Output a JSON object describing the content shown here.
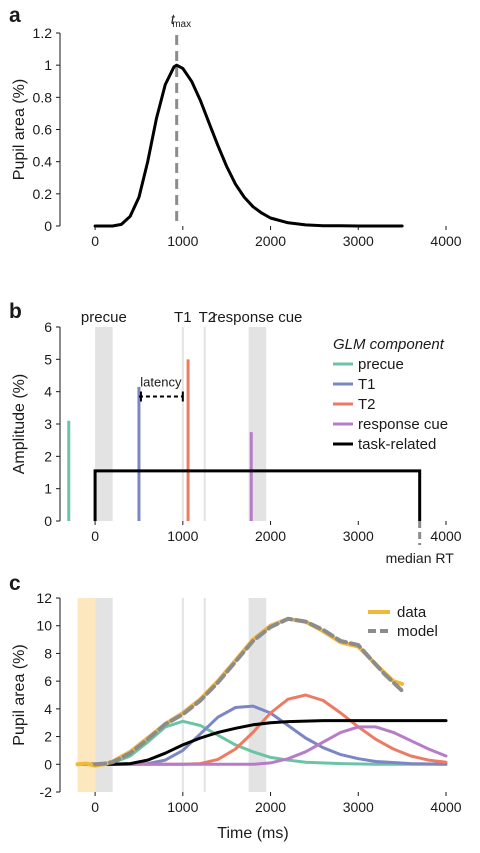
{
  "chart_data": [
    {
      "panel_label": "a",
      "type": "line",
      "xlabel": "",
      "ylabel": "Pupil area (%)",
      "xlim": [
        -400,
        4000
      ],
      "ylim": [
        0,
        1.2
      ],
      "xticks": [
        0,
        1000,
        2000,
        3000,
        4000
      ],
      "yticks": [
        0,
        0.2,
        0.4,
        0.6,
        0.8,
        1,
        1.2
      ],
      "ytick_labels": [
        "0",
        "0.2",
        "0.4",
        "0.6",
        "0.8",
        "1",
        "1.2"
      ],
      "series": [
        {
          "color": "#000000",
          "x": [
            0,
            200,
            300,
            400,
            500,
            600,
            700,
            800,
            900,
            930,
            1000,
            1100,
            1200,
            1300,
            1400,
            1500,
            1600,
            1700,
            1800,
            1900,
            2000,
            2200,
            2400,
            2600,
            2800,
            3000,
            3200,
            3500
          ],
          "y": [
            0,
            0,
            0.01,
            0.06,
            0.18,
            0.4,
            0.67,
            0.88,
            0.99,
            1.0,
            0.98,
            0.9,
            0.78,
            0.64,
            0.5,
            0.37,
            0.26,
            0.18,
            0.12,
            0.08,
            0.05,
            0.02,
            0.007,
            0.002,
            0.001,
            0,
            0,
            0
          ]
        }
      ],
      "annotations": [
        {
          "text_main": "t",
          "text_sub": "max",
          "x": 930,
          "style": "dashed-vertical",
          "color": "#8c8c8c"
        }
      ]
    },
    {
      "panel_label": "b",
      "type": "stem",
      "xlabel": "",
      "ylabel": "Amplitude (%)",
      "xlim": [
        -400,
        4000
      ],
      "ylim": [
        0,
        6
      ],
      "xticks": [
        0,
        1000,
        2000,
        3000,
        4000
      ],
      "yticks": [
        0,
        1,
        2,
        3,
        4,
        5,
        6
      ],
      "shaded_regions": [
        {
          "x": [
            0,
            200
          ],
          "color": "#e3e3e3"
        },
        {
          "x": [
            1750,
            1950
          ],
          "color": "#e3e3e3"
        }
      ],
      "event_lines": [
        {
          "x": 1000,
          "color": "#e3e3e3"
        },
        {
          "x": 1250,
          "color": "#e3e3e3"
        }
      ],
      "event_labels": [
        {
          "text": "precue",
          "x": 100
        },
        {
          "text": "T1",
          "x": 1000
        },
        {
          "text": "T2",
          "x": 1280
        },
        {
          "text": "response cue",
          "x": 1850
        }
      ],
      "legend_title": "GLM component",
      "legend_position": "right",
      "series": [
        {
          "name": "precue",
          "color": "#6cc4a4",
          "stem": {
            "x": -300,
            "y": 3.1
          }
        },
        {
          "name": "T1",
          "color": "#7b86c4",
          "stem": {
            "x": 500,
            "y": 4.15
          }
        },
        {
          "name": "T2",
          "color": "#ee7a62",
          "stem": {
            "x": 1060,
            "y": 5.0
          }
        },
        {
          "name": "response cue",
          "color": "#b77cc8",
          "stem": {
            "x": 1780,
            "y": 2.75
          }
        },
        {
          "name": "task-related",
          "color": "#000000",
          "box": {
            "x": [
              0,
              3700
            ],
            "y": 1.55
          }
        }
      ],
      "latency": {
        "text": "latency",
        "x": [
          500,
          1000
        ],
        "y": 3.85
      },
      "median_rt": {
        "text": "median RT",
        "x": 3700
      }
    },
    {
      "panel_label": "c",
      "type": "line",
      "xlabel": "Time (ms)",
      "ylabel": "Pupil area (%)",
      "xlim": [
        -400,
        4000
      ],
      "ylim": [
        -2,
        12
      ],
      "xticks": [
        0,
        1000,
        2000,
        3000,
        4000
      ],
      "yticks": [
        -2,
        0,
        2,
        4,
        6,
        8,
        10,
        12
      ],
      "shaded_regions": [
        {
          "x": [
            -200,
            0
          ],
          "color": "#fde7bf"
        },
        {
          "x": [
            0,
            200
          ],
          "color": "#e3e3e3"
        },
        {
          "x": [
            1750,
            1950
          ],
          "color": "#e3e3e3"
        }
      ],
      "event_lines": [
        {
          "x": 1000,
          "color": "#e3e3e3"
        },
        {
          "x": 1250,
          "color": "#e3e3e3"
        }
      ],
      "legend_position": "top-right",
      "series": [
        {
          "color": "#6cc4a4",
          "x": [
            -200,
            0,
            200,
            400,
            600,
            800,
            1000,
            1200,
            1400,
            1600,
            1800,
            2000,
            2200,
            2400,
            2800,
            3200,
            4000
          ],
          "y": [
            0,
            0,
            0.1,
            0.6,
            1.6,
            2.7,
            3.1,
            2.8,
            2.1,
            1.4,
            0.9,
            0.5,
            0.3,
            0.15,
            0.05,
            0,
            0
          ]
        },
        {
          "color": "#7b86c4",
          "x": [
            -200,
            400,
            600,
            800,
            1000,
            1200,
            1400,
            1600,
            1800,
            2000,
            2200,
            2400,
            2600,
            2800,
            3000,
            3200,
            3600,
            4000
          ],
          "y": [
            0,
            0,
            0.05,
            0.3,
            1.0,
            2.2,
            3.4,
            4.1,
            4.2,
            3.7,
            2.8,
            1.9,
            1.2,
            0.7,
            0.4,
            0.2,
            0.05,
            0
          ]
        },
        {
          "color": "#ee7a62",
          "x": [
            -200,
            1000,
            1200,
            1400,
            1600,
            1800,
            2000,
            2200,
            2400,
            2600,
            2800,
            3000,
            3200,
            3400,
            3600,
            3800,
            4000
          ],
          "y": [
            0,
            0,
            0.05,
            0.35,
            1.1,
            2.3,
            3.7,
            4.7,
            5.0,
            4.6,
            3.7,
            2.7,
            1.8,
            1.1,
            0.6,
            0.3,
            0.15
          ]
        },
        {
          "color": "#b77cc8",
          "x": [
            -200,
            1800,
            2000,
            2200,
            2400,
            2600,
            2800,
            3000,
            3200,
            3400,
            3600,
            3800,
            4000
          ],
          "y": [
            0,
            0,
            0.1,
            0.4,
            0.9,
            1.6,
            2.3,
            2.7,
            2.7,
            2.3,
            1.7,
            1.1,
            0.6
          ]
        },
        {
          "color": "#000000",
          "x": [
            -200,
            0,
            200,
            400,
            600,
            800,
            1000,
            1200,
            1400,
            1600,
            1800,
            2000,
            2200,
            2400,
            2600,
            2800,
            3000,
            3400,
            4000
          ],
          "y": [
            0,
            0,
            0,
            0.05,
            0.3,
            0.8,
            1.4,
            1.9,
            2.3,
            2.6,
            2.85,
            3.0,
            3.08,
            3.12,
            3.15,
            3.15,
            3.15,
            3.15,
            3.15
          ]
        },
        {
          "name": "data",
          "color": "#f0b93a",
          "x": [
            -200,
            -100,
            0,
            100,
            200,
            400,
            600,
            800,
            1000,
            1200,
            1400,
            1600,
            1800,
            2000,
            2200,
            2400,
            2600,
            2800,
            3000,
            3200,
            3300,
            3400,
            3500
          ],
          "y": [
            0,
            0.05,
            -0.1,
            0,
            0.2,
            0.9,
            1.9,
            2.9,
            3.7,
            4.7,
            6.0,
            7.5,
            9.0,
            10.0,
            10.5,
            10.3,
            9.6,
            8.8,
            8.5,
            7.2,
            6.6,
            6.0,
            5.8
          ]
        },
        {
          "name": "model",
          "color": "#8c8c8c",
          "x": [
            0,
            100,
            200,
            400,
            600,
            800,
            1000,
            1200,
            1400,
            1600,
            1800,
            2000,
            2200,
            2400,
            2600,
            2800,
            3000,
            3200,
            3300,
            3400,
            3500
          ],
          "y": [
            0,
            0.05,
            0.15,
            0.8,
            1.8,
            2.9,
            3.6,
            4.6,
            5.9,
            7.4,
            8.9,
            9.9,
            10.5,
            10.3,
            9.7,
            8.9,
            8.6,
            7.2,
            6.5,
            5.9,
            5.3
          ]
        }
      ]
    }
  ]
}
